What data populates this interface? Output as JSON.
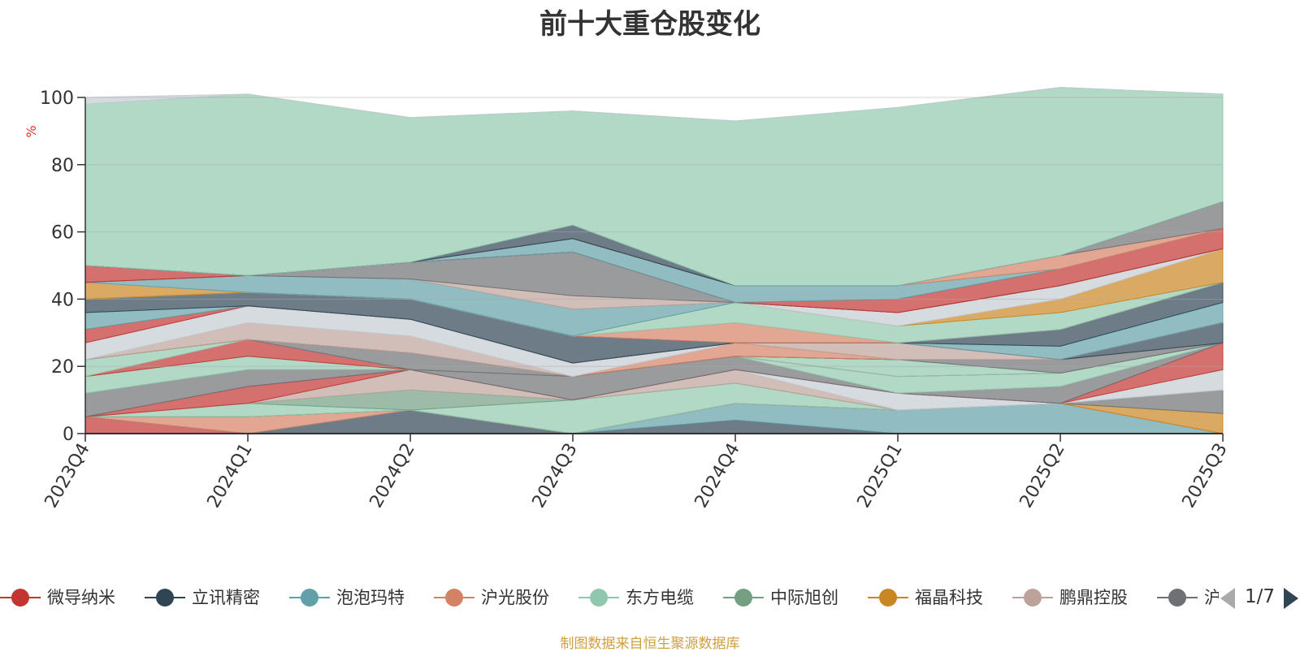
{
  "chart_data": {
    "type": "area",
    "stacked": true,
    "normalized_percent": true,
    "title": "前十大重仓股变化",
    "ylabel": "%",
    "ylim": [
      0,
      100
    ],
    "yticks": [
      0,
      20,
      40,
      60,
      80,
      100
    ],
    "categories": [
      "2023Q4",
      "2024Q1",
      "2024Q2",
      "2024Q3",
      "2024Q4",
      "2025Q1",
      "2025Q2",
      "2025Q3"
    ],
    "grid": true,
    "legend_position": "bottom",
    "legend_page": "1/7",
    "series": [
      {
        "name": "微导纳米",
        "color": "#c23531",
        "values": [
          5,
          0,
          0,
          0,
          0,
          0,
          0,
          0
        ]
      },
      {
        "name": "",
        "color": "#2f4554",
        "values": [
          0,
          0,
          7,
          0,
          4,
          0,
          0,
          0
        ]
      },
      {
        "name": "",
        "color": "#61a0a8",
        "values": [
          0,
          0,
          0,
          0,
          5,
          7,
          9,
          0
        ]
      },
      {
        "name": "",
        "color": "#d48265",
        "values": [
          0,
          5,
          0,
          0,
          0,
          0,
          0,
          0
        ]
      },
      {
        "name": "",
        "color": "#ca8622",
        "values": [
          0,
          0,
          0,
          0,
          0,
          0,
          0,
          6
        ]
      },
      {
        "name": "",
        "color": "#6e7074",
        "values": [
          0,
          0,
          0,
          0,
          0,
          0,
          0,
          7
        ]
      },
      {
        "name": "",
        "color": "#91c7ae",
        "values": [
          0,
          4,
          0,
          10,
          6,
          0,
          0,
          0
        ]
      },
      {
        "name": "",
        "color": "#749f83",
        "values": [
          0,
          0,
          6,
          0,
          0,
          0,
          0,
          0
        ]
      },
      {
        "name": "",
        "color": "#bda29a",
        "values": [
          0,
          0,
          6,
          0,
          4,
          0,
          0,
          0
        ]
      },
      {
        "name": "",
        "color": "#c4ccd3",
        "values": [
          0,
          0,
          0,
          0,
          0,
          5,
          0,
          6
        ]
      },
      {
        "name": "",
        "color": "#c23531",
        "values": [
          0,
          5,
          0,
          0,
          0,
          0,
          0,
          8
        ]
      },
      {
        "name": "",
        "color": "#6e7074",
        "values": [
          7,
          5,
          0,
          7,
          4,
          0,
          5,
          0
        ]
      },
      {
        "name": "",
        "color": "#91c7ae",
        "values": [
          5,
          4,
          0,
          0,
          0,
          5,
          4,
          0
        ]
      },
      {
        "name": "",
        "color": "#c23531",
        "values": [
          0,
          5,
          0,
          0,
          0,
          0,
          0,
          0
        ]
      },
      {
        "name": "",
        "color": "#91c7ae",
        "values": [
          5,
          0,
          0,
          0,
          0,
          5,
          0,
          0
        ]
      },
      {
        "name": "",
        "color": "#6e7074",
        "values": [
          0,
          0,
          5,
          0,
          0,
          0,
          4,
          0
        ]
      },
      {
        "name": "",
        "color": "#2f4554",
        "values": [
          0,
          0,
          0,
          0,
          0,
          0,
          0,
          6
        ]
      },
      {
        "name": "",
        "color": "#d48265",
        "values": [
          0,
          0,
          0,
          0,
          4,
          0,
          0,
          0
        ]
      },
      {
        "name": "",
        "color": "#bda29a",
        "values": [
          0,
          5,
          5,
          0,
          0,
          5,
          0,
          0
        ]
      },
      {
        "name": "",
        "color": "#c4ccd3",
        "values": [
          5,
          5,
          5,
          4,
          0,
          0,
          0,
          0
        ]
      },
      {
        "name": "",
        "color": "#c23531",
        "values": [
          4,
          0,
          0,
          0,
          0,
          0,
          0,
          0
        ]
      },
      {
        "name": "",
        "color": "#61a0a8",
        "values": [
          5,
          0,
          0,
          0,
          0,
          0,
          4,
          6
        ]
      },
      {
        "name": "",
        "color": "#2f4554",
        "values": [
          4,
          4,
          6,
          8,
          0,
          0,
          5,
          6
        ]
      },
      {
        "name": "",
        "color": "#d48265",
        "values": [
          0,
          0,
          0,
          0,
          6,
          0,
          0,
          0
        ]
      },
      {
        "name": "",
        "color": "#91c7ae",
        "values": [
          0,
          0,
          0,
          0,
          6,
          5,
          5,
          0
        ]
      },
      {
        "name": "",
        "color": "#ca8622",
        "values": [
          5,
          0,
          0,
          0,
          0,
          0,
          4,
          10
        ]
      },
      {
        "name": "",
        "color": "#c4ccd3",
        "values": [
          0,
          0,
          0,
          0,
          0,
          4,
          4,
          0
        ]
      },
      {
        "name": "",
        "color": "#61a0a8",
        "values": [
          0,
          5,
          6,
          8,
          0,
          0,
          0,
          0
        ]
      },
      {
        "name": "",
        "color": "#bda29a",
        "values": [
          0,
          0,
          0,
          4,
          0,
          0,
          0,
          0
        ]
      },
      {
        "name": "",
        "color": "#6e7074",
        "values": [
          0,
          0,
          5,
          13,
          0,
          0,
          0,
          0
        ]
      },
      {
        "name": "",
        "color": "#c23531",
        "values": [
          5,
          0,
          0,
          0,
          0,
          4,
          5,
          6
        ]
      },
      {
        "name": "",
        "color": "#61a0a8",
        "values": [
          0,
          0,
          0,
          4,
          5,
          4,
          0,
          0
        ]
      },
      {
        "name": "",
        "color": "#d48265",
        "values": [
          0,
          0,
          0,
          0,
          0,
          0,
          4,
          0
        ]
      },
      {
        "name": "",
        "color": "#6e7074",
        "values": [
          0,
          0,
          0,
          0,
          0,
          0,
          0,
          8
        ]
      },
      {
        "name": "",
        "color": "#2f4554",
        "values": [
          0,
          0,
          0,
          4,
          0,
          0,
          0,
          0
        ]
      },
      {
        "name": "",
        "color": "#91c7ae",
        "values": [
          48,
          54,
          43,
          34,
          49,
          53,
          50,
          32
        ]
      },
      {
        "name": "",
        "color": "#c4ccd3",
        "values": [
          2,
          0,
          0,
          0,
          0,
          0,
          0,
          0
        ]
      }
    ]
  },
  "legend": {
    "items": [
      {
        "label": "微导纳米",
        "color": "#c23531"
      },
      {
        "label": "立讯精密",
        "color": "#2f4554"
      },
      {
        "label": "泡泡玛特",
        "color": "#61a0a8"
      },
      {
        "label": "沪光股份",
        "color": "#d48265"
      },
      {
        "label": "东方电缆",
        "color": "#91c7ae"
      },
      {
        "label": "中际旭创",
        "color": "#749f83"
      },
      {
        "label": "福晶科技",
        "color": "#ca8622"
      },
      {
        "label": "鹏鼎控股",
        "color": "#bda29a"
      },
      {
        "label": "沪",
        "color": "#6e7074"
      }
    ],
    "page_indicator": "1/7",
    "prev_icon": "triangle-left-icon",
    "next_icon": "triangle-right-icon"
  },
  "source_note": "制图数据来自恒生聚源数据库"
}
